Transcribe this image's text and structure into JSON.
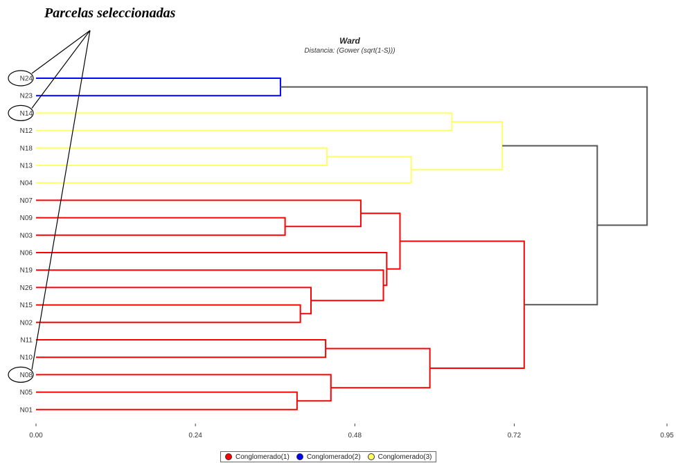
{
  "annotation": "Parcelas seleccionadas",
  "colors": {
    "c1": "#ff0000",
    "c2": "#0000ff",
    "c3": "#ffff66",
    "link": "#555555"
  },
  "chart_data": {
    "type": "dendrogram",
    "title": "Ward",
    "subtitle": "Distancia: (Gower (sqrt(1-S)))",
    "xlim": [
      0,
      0.95
    ],
    "xticks": [
      "0.00",
      "0.24",
      "0.48",
      "0.72",
      "0.95"
    ],
    "leaves": [
      "N24",
      "N23",
      "N14",
      "N12",
      "N18",
      "N13",
      "N04",
      "N07",
      "N09",
      "N03",
      "N06",
      "N19",
      "N26",
      "N15",
      "N02",
      "N11",
      "N10",
      "N08",
      "N05",
      "N01"
    ],
    "selected": [
      "N24",
      "N14",
      "N08"
    ],
    "merges": [
      {
        "id": "M1",
        "children": [
          "N24",
          "N23"
        ],
        "height": 0.368,
        "color": "c2"
      },
      {
        "id": "M2",
        "children": [
          "N14",
          "N12"
        ],
        "height": 0.626,
        "color": "c3"
      },
      {
        "id": "M3",
        "children": [
          "N18",
          "N13"
        ],
        "height": 0.438,
        "color": "c3"
      },
      {
        "id": "M4",
        "children": [
          "M3",
          "N04"
        ],
        "height": 0.565,
        "color": "c3"
      },
      {
        "id": "M5",
        "children": [
          "M2",
          "M4"
        ],
        "height": 0.702,
        "color": "c3"
      },
      {
        "id": "M6",
        "children": [
          "N09",
          "N03"
        ],
        "height": 0.375,
        "color": "c1"
      },
      {
        "id": "M7",
        "children": [
          "N07",
          "M6"
        ],
        "height": 0.489,
        "color": "c1"
      },
      {
        "id": "M8",
        "children": [
          "N15",
          "N02"
        ],
        "height": 0.398,
        "color": "c1"
      },
      {
        "id": "M9",
        "children": [
          "N26",
          "M8"
        ],
        "height": 0.414,
        "color": "c1"
      },
      {
        "id": "M10",
        "children": [
          "N19",
          "M9"
        ],
        "height": 0.523,
        "color": "c1"
      },
      {
        "id": "M11",
        "children": [
          "N06",
          "M10"
        ],
        "height": 0.528,
        "color": "c1"
      },
      {
        "id": "M12",
        "children": [
          "M7",
          "M11"
        ],
        "height": 0.548,
        "color": "c1"
      },
      {
        "id": "M13",
        "children": [
          "N11",
          "N10"
        ],
        "height": 0.436,
        "color": "c1"
      },
      {
        "id": "M14",
        "children": [
          "N05",
          "N01"
        ],
        "height": 0.393,
        "color": "c1"
      },
      {
        "id": "M15",
        "children": [
          "N08",
          "M14"
        ],
        "height": 0.444,
        "color": "c1"
      },
      {
        "id": "M16",
        "children": [
          "M13",
          "M15"
        ],
        "height": 0.593,
        "color": "c1"
      },
      {
        "id": "M17",
        "children": [
          "M12",
          "M16"
        ],
        "height": 0.735,
        "color": "c1"
      },
      {
        "id": "M18",
        "children": [
          "M5",
          "M17"
        ],
        "height": 0.845,
        "color": "link"
      },
      {
        "id": "M19",
        "children": [
          "M1",
          "M18"
        ],
        "height": 0.92,
        "color": "link"
      }
    ],
    "legend": [
      {
        "label": "Conglomerado(1)",
        "color": "#ff0000"
      },
      {
        "label": "Conglomerado(2)",
        "color": "#0000ff"
      },
      {
        "label": "Conglomerado(3)",
        "color": "#ffff66"
      }
    ],
    "legend_position": "bottom-center"
  }
}
